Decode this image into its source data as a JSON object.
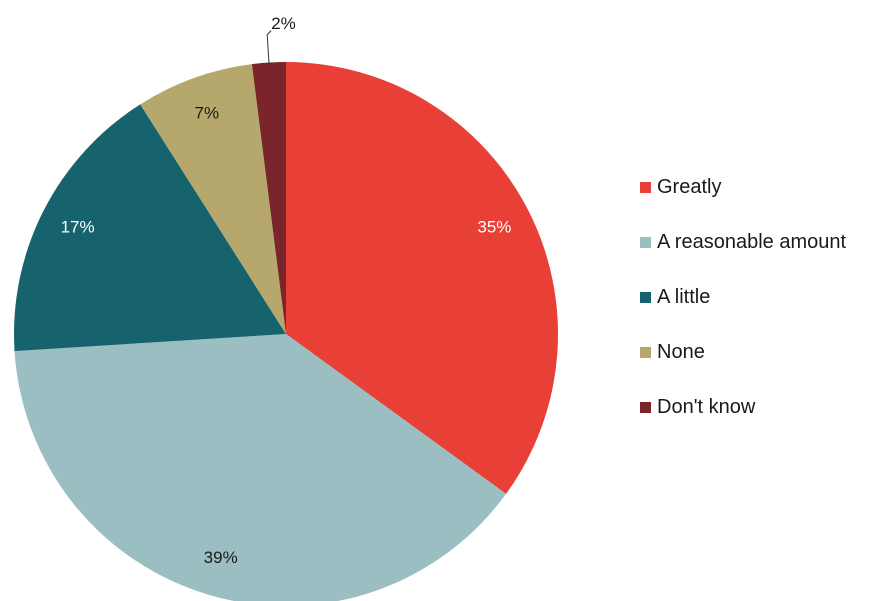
{
  "chart_data": {
    "type": "pie",
    "title": "",
    "categories": [
      "Greatly",
      "A reasonable amount",
      "A little",
      "None",
      "Don't know"
    ],
    "values": [
      35,
      39,
      17,
      7,
      2
    ],
    "labels": [
      "35%",
      "39%",
      "17%",
      "7%",
      "2%"
    ],
    "colors": [
      "#e84037",
      "#9bbec2",
      "#17636d",
      "#b6a86d",
      "#7a242b"
    ],
    "label_colors": [
      "#ffffff",
      "#1a1a1a",
      "#ffffff",
      "#1a1a1a",
      "#1a1a1a"
    ],
    "legend_position": "right",
    "start_angle": "top",
    "direction": "clockwise"
  }
}
